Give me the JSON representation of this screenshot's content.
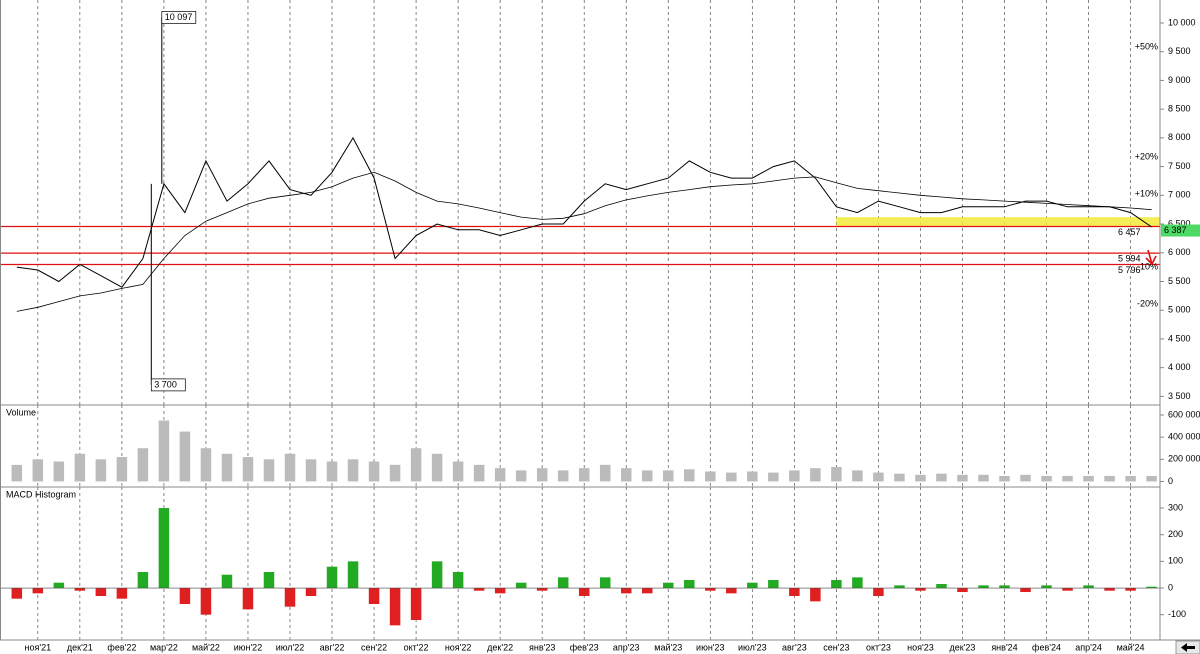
{
  "chart_data": [
    {
      "type": "line",
      "x": [
        -0.5,
        0,
        0.5,
        1,
        1.5,
        2,
        2.5,
        3,
        3.5,
        4,
        4.5,
        5,
        5.5,
        6,
        6.5,
        7,
        7.5,
        8,
        8.5,
        9,
        9.5,
        10,
        10.5,
        11,
        11.5,
        12,
        12.5,
        13,
        13.5,
        14,
        14.5,
        15,
        15.5,
        16,
        16.5,
        17,
        17.5,
        18,
        18.5,
        19,
        19.5,
        20,
        20.5,
        21,
        21.5,
        22,
        22.5,
        23,
        23.5,
        24,
        24.5,
        25,
        25.5,
        26,
        26.5
      ],
      "series": [
        {
          "color": "#000000",
          "values": [
            5750,
            5700,
            5500,
            5800,
            5600,
            5400,
            5900,
            7200,
            6700,
            7600,
            6900,
            7200,
            7600,
            7100,
            7000,
            7400,
            8000,
            7300,
            5900,
            6300,
            6500,
            6400,
            6400,
            6300,
            6400,
            6500,
            6500,
            6900,
            7200,
            7100,
            7200,
            7300,
            7600,
            7400,
            7300,
            7300,
            7500,
            7600,
            7300,
            6800,
            6700,
            6900,
            6800,
            6700,
            6700,
            6800,
            6800,
            6800,
            6900,
            6900,
            6800,
            6800,
            6800,
            6700,
            6450
          ]
        },
        {
          "color": "#000000",
          "values": [
            4980,
            5050,
            5150,
            5250,
            5300,
            5380,
            5450,
            5900,
            6300,
            6550,
            6700,
            6850,
            6950,
            7000,
            7050,
            7150,
            7300,
            7400,
            7250,
            7050,
            6900,
            6850,
            6780,
            6700,
            6620,
            6580,
            6600,
            6680,
            6820,
            6920,
            6990,
            7050,
            7100,
            7150,
            7180,
            7200,
            7250,
            7300,
            7320,
            7220,
            7120,
            7080,
            7040,
            7000,
            6970,
            6940,
            6920,
            6900,
            6880,
            6860,
            6840,
            6820,
            6800,
            6780,
            6750
          ]
        }
      ],
      "xlim": [
        -0.9,
        26.7
      ],
      "ylim": [
        3350,
        10400
      ],
      "yticks": [
        {
          "value": 3500,
          "label": "3 500"
        },
        {
          "value": 4000,
          "label": "4 000"
        },
        {
          "value": 4500,
          "label": "4 500"
        },
        {
          "value": 5000,
          "label": "5 000"
        },
        {
          "value": 5500,
          "label": "5 500"
        },
        {
          "value": 6000,
          "label": "6 000"
        },
        {
          "value": 6500,
          "label": "6 500"
        },
        {
          "value": 7000,
          "label": "7 000"
        },
        {
          "value": 7500,
          "label": "7 500"
        },
        {
          "value": 8000,
          "label": "8 000"
        },
        {
          "value": 8500,
          "label": "8 500"
        },
        {
          "value": 9000,
          "label": "9 000"
        },
        {
          "value": 9500,
          "label": "9 500"
        },
        {
          "value": 10000,
          "label": "10 000"
        }
      ],
      "annotations": [
        {
          "x": 2.95,
          "value": 10097,
          "label": "10 097"
        },
        {
          "x": 2.7,
          "value": 3700,
          "label": "3 700"
        }
      ],
      "zone": {
        "from": 6457,
        "to": 6620,
        "x_from": 19,
        "color": "#f3ea3a"
      },
      "levels": [
        {
          "value": 6457,
          "label": "6 457"
        },
        {
          "value": 5994,
          "label": "5 994"
        },
        {
          "value": 5796,
          "label": "5 796"
        }
      ],
      "level_color": "#e01010",
      "percent_levels": [
        {
          "value": 9580,
          "label": "+50%",
          "color": "#1a9a1a"
        },
        {
          "value": 7665,
          "label": "+20%",
          "color": "#1a9a1a"
        },
        {
          "value": 7025,
          "label": "+10%",
          "color": "#1a9a1a"
        },
        {
          "value": 5750,
          "label": "-10%",
          "color": "#e01010"
        },
        {
          "value": 5110,
          "label": "-20%",
          "color": "#e01010"
        }
      ],
      "last": {
        "value": 6387,
        "label": "6 387",
        "color": "#4cd964"
      }
    },
    {
      "type": "bar",
      "title": "Volume",
      "color": "#bbbbbb",
      "x": [
        -0.5,
        0,
        0.5,
        1,
        1.5,
        2,
        2.5,
        3,
        3.5,
        4,
        4.5,
        5,
        5.5,
        6,
        6.5,
        7,
        7.5,
        8,
        8.5,
        9,
        9.5,
        10,
        10.5,
        11,
        11.5,
        12,
        12.5,
        13,
        13.5,
        14,
        14.5,
        15,
        15.5,
        16,
        16.5,
        17,
        17.5,
        18,
        18.5,
        19,
        19.5,
        20,
        20.5,
        21,
        21.5,
        22,
        22.5,
        23,
        23.5,
        24,
        24.5,
        25,
        25.5,
        26,
        26.5
      ],
      "values": [
        150000,
        200000,
        180000,
        250000,
        200000,
        220000,
        300000,
        550000,
        450000,
        300000,
        250000,
        220000,
        200000,
        250000,
        200000,
        180000,
        200000,
        180000,
        150000,
        300000,
        250000,
        180000,
        150000,
        120000,
        100000,
        120000,
        100000,
        120000,
        150000,
        120000,
        100000,
        100000,
        110000,
        90000,
        80000,
        90000,
        80000,
        100000,
        120000,
        130000,
        100000,
        80000,
        70000,
        60000,
        70000,
        60000,
        60000,
        50000,
        60000,
        50000,
        50000,
        50000,
        50000,
        50000,
        50000
      ],
      "xlim": [
        -0.9,
        26.7
      ],
      "ylim": [
        -50000,
        690000
      ],
      "yticks": [
        0,
        {
          "value": 200000,
          "label": "200 000"
        },
        {
          "value": 400000,
          "label": "400 000"
        },
        {
          "value": 600000,
          "label": "600 000"
        }
      ]
    },
    {
      "type": "bar",
      "title": "MACD Histogram",
      "positive_color": "#22aa22",
      "negative_color": "#e02020",
      "x": [
        -0.5,
        0,
        0.5,
        1,
        1.5,
        2,
        2.5,
        3,
        3.5,
        4,
        4.5,
        5,
        5.5,
        6,
        6.5,
        7,
        7.5,
        8,
        8.5,
        9,
        9.5,
        10,
        10.5,
        11,
        11.5,
        12,
        12.5,
        13,
        13.5,
        14,
        14.5,
        15,
        15.5,
        16,
        16.5,
        17,
        17.5,
        18,
        18.5,
        19,
        19.5,
        20,
        20.5,
        21,
        21.5,
        22,
        22.5,
        23,
        23.5,
        24,
        24.5,
        25,
        25.5,
        26,
        26.5
      ],
      "values": [
        -40,
        -20,
        20,
        -10,
        -30,
        -40,
        60,
        300,
        -60,
        -100,
        50,
        -80,
        60,
        -70,
        -30,
        80,
        100,
        -60,
        -140,
        -120,
        100,
        60,
        -10,
        -20,
        20,
        -10,
        40,
        -30,
        40,
        -20,
        -20,
        20,
        30,
        -10,
        -20,
        20,
        30,
        -30,
        -50,
        30,
        40,
        -30,
        10,
        -10,
        15,
        -15,
        10,
        10,
        -15,
        10,
        -10,
        10,
        -10,
        -10,
        5
      ],
      "xlim": [
        -0.9,
        26.7
      ],
      "ylim": [
        -195,
        379
      ],
      "yticks": [
        -100,
        0,
        100,
        200,
        300
      ],
      "xticks": [
        {
          "value": 0,
          "label": "ноя'21"
        },
        {
          "value": 1,
          "label": "дек'21"
        },
        {
          "value": 2,
          "label": "фев'22"
        },
        {
          "value": 3,
          "label": "мар'22"
        },
        {
          "value": 4,
          "label": "май'22"
        },
        {
          "value": 5,
          "label": "июн'22"
        },
        {
          "value": 6,
          "label": "июл'22"
        },
        {
          "value": 7,
          "label": "авг'22"
        },
        {
          "value": 8,
          "label": "сен'22"
        },
        {
          "value": 9,
          "label": "окт'22"
        },
        {
          "value": 10,
          "label": "ноя'22"
        },
        {
          "value": 11,
          "label": "дек'22"
        },
        {
          "value": 12,
          "label": "янв'23"
        },
        {
          "value": 13,
          "label": "фев'23"
        },
        {
          "value": 14,
          "label": "апр'23"
        },
        {
          "value": 15,
          "label": "май'23"
        },
        {
          "value": 16,
          "label": "июн'23"
        },
        {
          "value": 17,
          "label": "июл'23"
        },
        {
          "value": 18,
          "label": "авг'23"
        },
        {
          "value": 19,
          "label": "сен'23"
        },
        {
          "value": 20,
          "label": "окт'23"
        },
        {
          "value": 21,
          "label": "ноя'23"
        },
        {
          "value": 22,
          "label": "дек'23"
        },
        {
          "value": 23,
          "label": "янв'24"
        },
        {
          "value": 24,
          "label": "фев'24"
        },
        {
          "value": 25,
          "label": "апр'24"
        },
        {
          "value": 26,
          "label": "май'24"
        }
      ]
    }
  ]
}
